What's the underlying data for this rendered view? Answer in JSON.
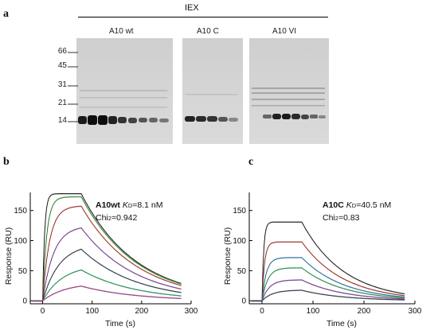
{
  "panels": {
    "a": {
      "letter": "a"
    },
    "b": {
      "letter": "b"
    },
    "c": {
      "letter": "c"
    }
  },
  "gel": {
    "header": "IEX",
    "lanes": [
      "A10 wt",
      "A10 C",
      "A10 VI"
    ],
    "mw_markers": [
      "66",
      "45",
      "31",
      "21",
      "14"
    ]
  },
  "chart_data": [
    {
      "type": "line",
      "panel": "b",
      "ylabel": "Response (RU)",
      "xlabel": "Time (s)",
      "xlim": [
        -25,
        300
      ],
      "ylim": [
        -5,
        180
      ],
      "x_ticks": [
        0,
        100,
        200,
        300
      ],
      "y_ticks": [
        0,
        50,
        100,
        150
      ],
      "annotation": {
        "name": "A10wt",
        "kd_label": "K",
        "kd_sub": "D",
        "kd_value": "=8.1 nM",
        "chi": "Chi",
        "chi_sub": "2",
        "chi_value": "=0.942"
      },
      "association_end": 78,
      "koff": 0.009,
      "series": [
        {
          "plateau": 178,
          "kon": 0.25,
          "color": "#222222"
        },
        {
          "plateau": 173,
          "kon": 0.12,
          "color": "#3aa53a"
        },
        {
          "plateau": 158,
          "kon": 0.07,
          "color": "#c0392b"
        },
        {
          "plateau": 125,
          "kon": 0.045,
          "color": "#8e44ad"
        },
        {
          "plateau": 95,
          "kon": 0.03,
          "color": "#2c3e50"
        },
        {
          "plateau": 60,
          "kon": 0.025,
          "color": "#27ae60"
        },
        {
          "plateau": 30,
          "kon": 0.022,
          "color": "#b03a9a"
        }
      ]
    },
    {
      "type": "line",
      "panel": "c",
      "ylabel": "Response (RU)",
      "xlabel": "Time (s)",
      "xlim": [
        -25,
        300
      ],
      "ylim": [
        -5,
        180
      ],
      "x_ticks": [
        0,
        100,
        200,
        300
      ],
      "y_ticks": [
        0,
        50,
        100,
        150
      ],
      "annotation": {
        "name": "A10C",
        "kd_label": "K",
        "kd_sub": "D",
        "kd_value": "=40.5 nM",
        "chi": "Chi",
        "chi_sub": "2",
        "chi_value": "=0.83"
      },
      "association_end": 78,
      "koff": 0.012,
      "series": [
        {
          "plateau": 131,
          "kon": 0.3,
          "color": "#222222"
        },
        {
          "plateau": 98,
          "kon": 0.2,
          "color": "#c0392b"
        },
        {
          "plateau": 72,
          "kon": 0.12,
          "color": "#2e86c1"
        },
        {
          "plateau": 55,
          "kon": 0.09,
          "color": "#27ae60"
        },
        {
          "plateau": 35,
          "kon": 0.07,
          "color": "#8e44ad"
        },
        {
          "plateau": 18,
          "kon": 0.05,
          "color": "#2c3e50"
        }
      ]
    }
  ]
}
